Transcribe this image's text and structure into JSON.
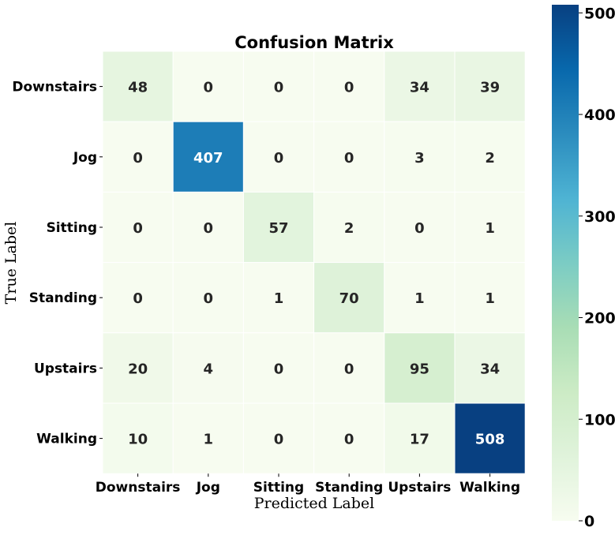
{
  "chart_data": {
    "type": "heatmap",
    "title": "Confusion Matrix",
    "xlabel": "Predicted Label",
    "ylabel": "True Label",
    "x_categories": [
      "Downstairs",
      "Jog",
      "Sitting",
      "Standing",
      "Upstairs",
      "Walking"
    ],
    "y_categories": [
      "Downstairs",
      "Jog",
      "Sitting",
      "Standing",
      "Upstairs",
      "Walking"
    ],
    "values": [
      [
        48,
        0,
        0,
        0,
        34,
        39
      ],
      [
        0,
        407,
        0,
        0,
        3,
        2
      ],
      [
        0,
        0,
        57,
        2,
        0,
        1
      ],
      [
        0,
        0,
        1,
        70,
        1,
        1
      ],
      [
        20,
        4,
        0,
        0,
        95,
        34
      ],
      [
        10,
        1,
        0,
        0,
        17,
        508
      ]
    ],
    "colormap": "GnBu",
    "colorbar": {
      "min": 0,
      "max": 508,
      "ticks": [
        0,
        100,
        200,
        300,
        400,
        500
      ],
      "colors": [
        "#f7fcf0",
        "#e0f3db",
        "#ccebc5",
        "#a8ddb5",
        "#7bccc4",
        "#4eb3d3",
        "#2b8cbe",
        "#0868ac",
        "#084081"
      ]
    },
    "light_text_color": "#ffffff",
    "dark_text_color": "#262626"
  }
}
